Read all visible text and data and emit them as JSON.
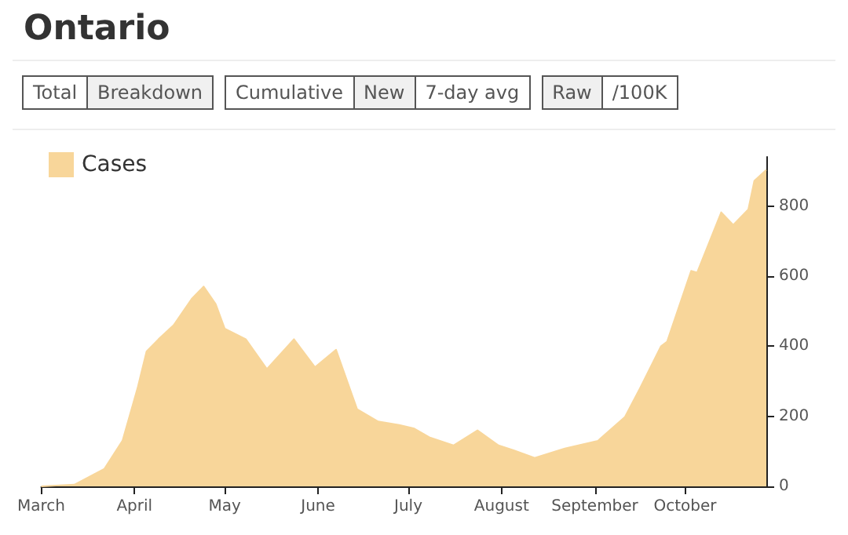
{
  "chart_data": {
    "type": "area",
    "title": "Ontario",
    "annotations": [
      "Total",
      "Breakdown",
      "Cumulative",
      "New",
      "7-day avg",
      "Raw",
      "/100K"
    ],
    "x": [
      "--03-01",
      "--03-12",
      "--03-22",
      "--03-28",
      "--04-02",
      "--04-05",
      "--04-09",
      "--04-14",
      "--04-20",
      "--04-24",
      "--04-28",
      "--05-01",
      "--05-08",
      "--05-15",
      "--05-24",
      "--05-31",
      "--06-07",
      "--06-14",
      "--06-21",
      "--06-28",
      "--07-03",
      "--07-08",
      "--07-16",
      "--07-24",
      "--07-31",
      "--08-05",
      "--08-12",
      "--08-22",
      "--09-02",
      "--09-11",
      "--09-16",
      "--09-23",
      "--09-25",
      "--10-03",
      "--10-05",
      "--10-13",
      "--10-17",
      "--10-22",
      "--10-24",
      "--10-28"
    ],
    "series": [
      {
        "name": "Cases",
        "color": "#f8d69a",
        "values": [
          0,
          5,
          50,
          130,
          280,
          385,
          420,
          460,
          535,
          570,
          520,
          450,
          420,
          335,
          420,
          340,
          390,
          220,
          185,
          175,
          165,
          140,
          117,
          160,
          117,
          103,
          81,
          108,
          130,
          198,
          280,
          400,
          413,
          615,
          610,
          782,
          746,
          790,
          872,
          903
        ]
      }
    ],
    "xlim": [
      "--03-01",
      "--10-28"
    ],
    "xticks": [
      {
        "value": "--03-01",
        "label": "March"
      },
      {
        "value": "--04-01",
        "label": "April"
      },
      {
        "value": "--05-01",
        "label": "May"
      },
      {
        "value": "--06-01",
        "label": "June"
      },
      {
        "value": "--07-01",
        "label": "July"
      },
      {
        "value": "--08-01",
        "label": "August"
      },
      {
        "value": "--09-01",
        "label": "September"
      },
      {
        "value": "--10-01",
        "label": "October"
      }
    ],
    "ylim": [
      0,
      940
    ],
    "yticks": [
      0,
      200,
      400,
      600,
      800
    ],
    "grid": false,
    "legend": "top left",
    "line_style": "solid",
    "marker": "none"
  }
}
